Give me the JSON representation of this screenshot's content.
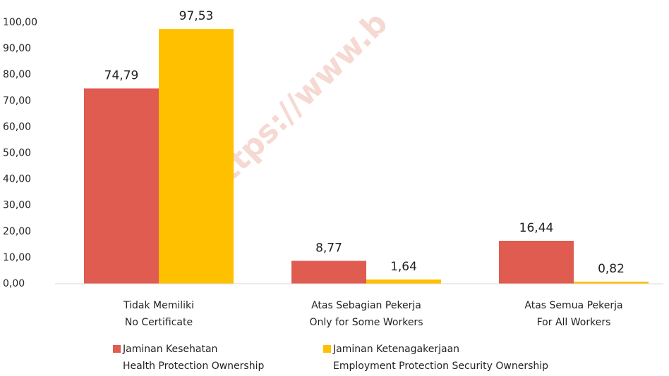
{
  "chart_data": {
    "type": "bar",
    "watermark": "https://www.b",
    "categories": [
      "Tidak Memiliki\nNo Certificate",
      "Atas Sebagian Pekerja\nOnly for Some Workers",
      "Atas Semua Pekerja\nFor All Workers"
    ],
    "series": [
      {
        "name": "Jaminan Kesehatan\nHealth Protection Ownership",
        "color": "#e05b50",
        "values": [
          74.79,
          8.77,
          16.44
        ],
        "value_labels": [
          "74,79",
          "8,77",
          "16,44"
        ]
      },
      {
        "name": "Jaminan Ketenagakerjaan\nEmployment Protection Security Ownership",
        "color": "#ffc000",
        "values": [
          97.53,
          1.64,
          0.82
        ],
        "value_labels": [
          "97,53",
          "1,64",
          "0,82"
        ]
      }
    ],
    "ylim": [
      0,
      100
    ],
    "yticks": [
      {
        "value": 0,
        "label": "0,00"
      },
      {
        "value": 10,
        "label": "10,00"
      },
      {
        "value": 20,
        "label": "20,00"
      },
      {
        "value": 30,
        "label": "30,00"
      },
      {
        "value": 40,
        "label": "40,00"
      },
      {
        "value": 50,
        "label": "50,00"
      },
      {
        "value": 60,
        "label": "60,00"
      },
      {
        "value": 70,
        "label": "70,00"
      },
      {
        "value": 80,
        "label": "80,00"
      },
      {
        "value": 90,
        "label": "90,00"
      },
      {
        "value": 100,
        "label": "100,00"
      }
    ],
    "grid": false,
    "legend": "bottom"
  }
}
